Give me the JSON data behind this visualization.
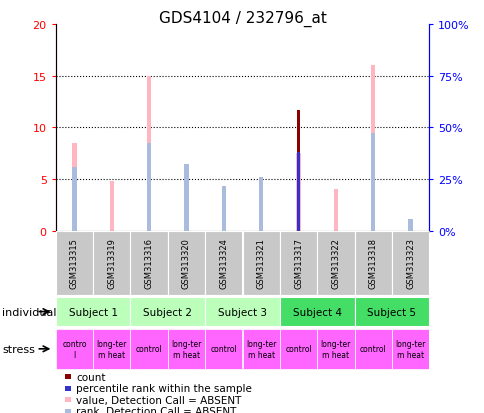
{
  "title": "GDS4104 / 232796_at",
  "samples": [
    "GSM313315",
    "GSM313319",
    "GSM313316",
    "GSM313320",
    "GSM313324",
    "GSM313321",
    "GSM313317",
    "GSM313322",
    "GSM313318",
    "GSM313323"
  ],
  "subjects": [
    "Subject 1",
    "Subject 1",
    "Subject 2",
    "Subject 2",
    "Subject 3",
    "Subject 3",
    "Subject 4",
    "Subject 4",
    "Subject 5",
    "Subject 5"
  ],
  "stress": [
    "contro\nl",
    "long-ter\nm heat",
    "control",
    "long-ter\nm heat",
    "control",
    "long-ter\nm heat",
    "control",
    "long-ter\nm heat",
    "control",
    "long-ter\nm heat"
  ],
  "count_values": [
    0,
    0,
    0,
    0,
    0,
    0,
    11.7,
    0,
    0,
    0
  ],
  "percentile_values": [
    0,
    0,
    0,
    0,
    0,
    0,
    7.6,
    0,
    0,
    0
  ],
  "value_absent": [
    8.5,
    4.8,
    15.0,
    6.5,
    3.9,
    5.2,
    7.5,
    4.0,
    16.0,
    0.95
  ],
  "rank_absent": [
    6.2,
    0,
    8.5,
    6.5,
    4.35,
    5.2,
    0,
    0,
    9.5,
    1.1
  ],
  "ylim_left": [
    0,
    20
  ],
  "ylim_right": [
    0,
    100
  ],
  "yticks_left": [
    0,
    5,
    10,
    15,
    20
  ],
  "yticks_right": [
    0,
    25,
    50,
    75,
    100
  ],
  "yticklabels_right": [
    "0%",
    "25%",
    "50%",
    "75%",
    "100%"
  ],
  "color_count": "#8B0000",
  "color_percentile": "#3333CC",
  "color_value_absent": "#FFB6C1",
  "color_rank_absent": "#AABBDD",
  "subject_colors_light": "#BBFFBB",
  "subject_colors_dark": "#44DD66",
  "subject_dark_list": [
    "Subject 4",
    "Subject 5"
  ],
  "stress_color": "#FF66FF",
  "gray_color": "#C8C8C8"
}
